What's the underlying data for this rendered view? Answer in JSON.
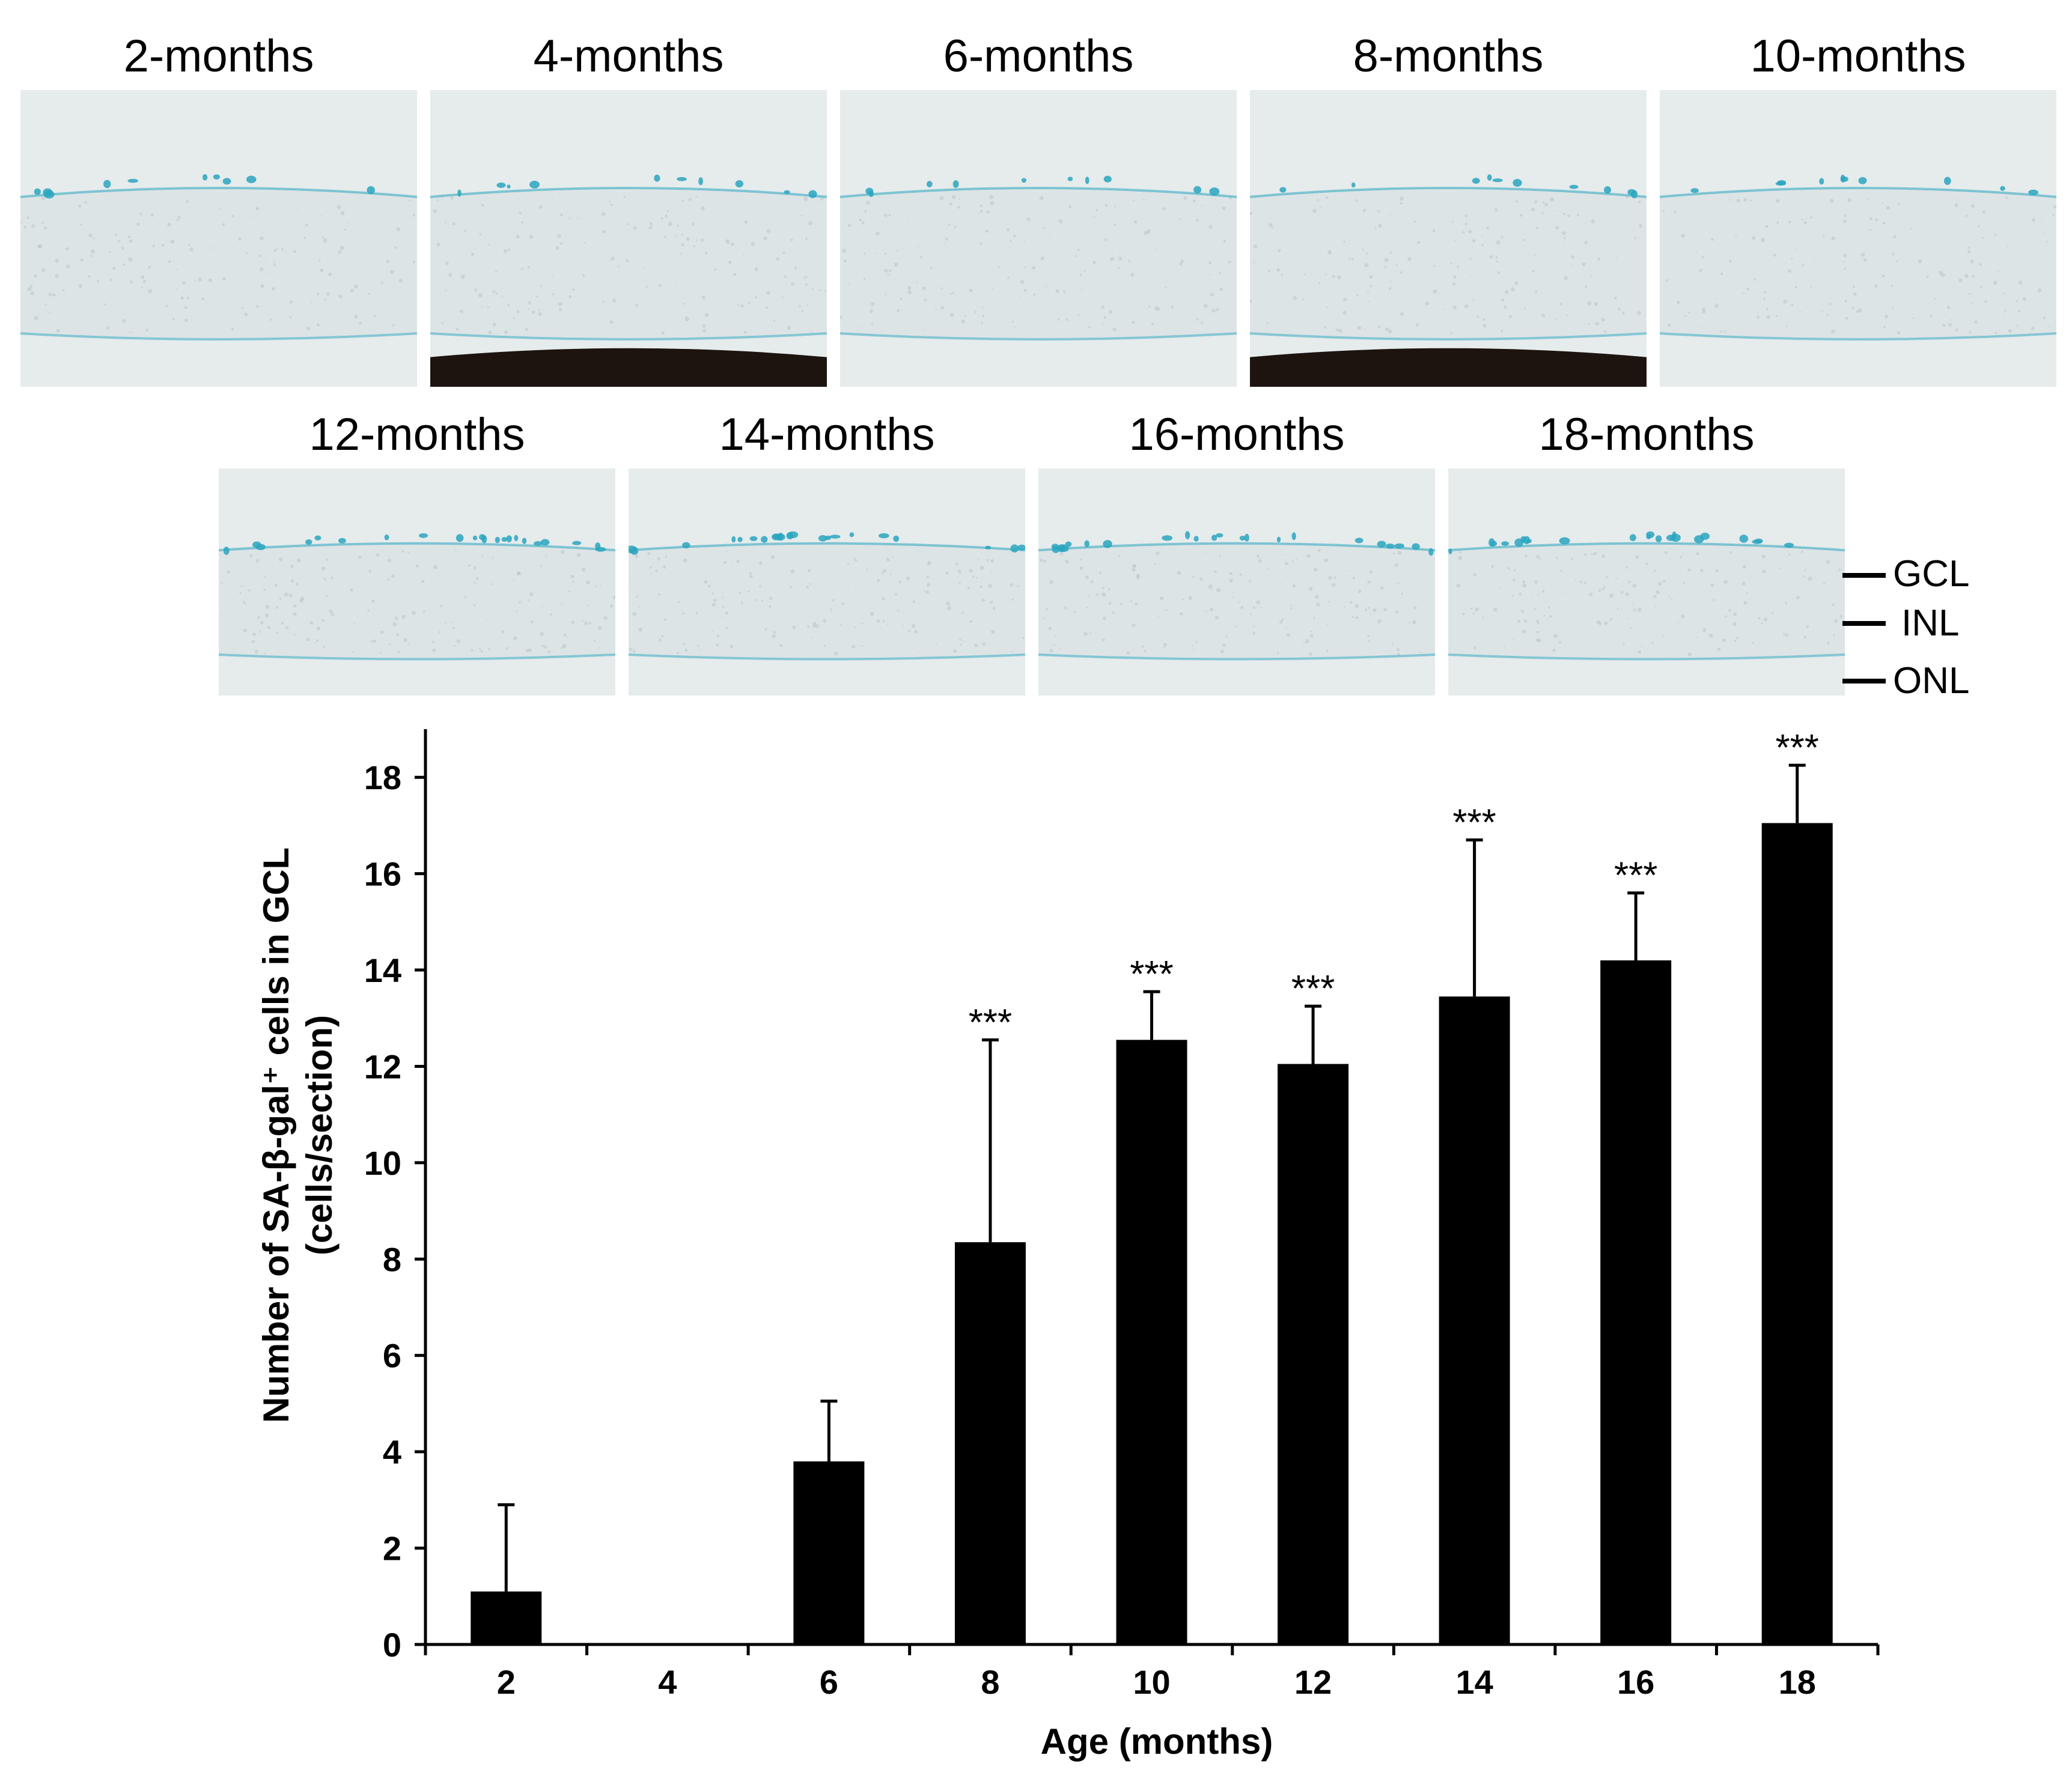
{
  "panels": {
    "row1": [
      {
        "label": "2-months",
        "kind": "a"
      },
      {
        "label": "4-months",
        "kind": "b"
      },
      {
        "label": "6-months",
        "kind": "a"
      },
      {
        "label": "8-months",
        "kind": "c"
      },
      {
        "label": "10-months",
        "kind": "a"
      }
    ],
    "row2": [
      {
        "label": "12-months"
      },
      {
        "label": "14-months"
      },
      {
        "label": "16-months"
      },
      {
        "label": "18-months"
      }
    ]
  },
  "layer_labels": {
    "gcl": "GCL",
    "inl": "INL",
    "onl": "ONL"
  },
  "colors": {
    "tissue": "#e9eef0",
    "stain": "#2aa6bf",
    "bar": "#000000"
  },
  "chart_data": {
    "type": "bar",
    "title": "",
    "xlabel": "Age (months)",
    "ylabel_line1": "Number of SA-β-gal⁺ cells in GCL",
    "ylabel_line2": "(cells/section)",
    "ylim": [
      0,
      19
    ],
    "yticks": [
      0,
      2,
      4,
      6,
      8,
      10,
      12,
      14,
      16,
      18
    ],
    "categories": [
      "2",
      "4",
      "6",
      "8",
      "10",
      "12",
      "14",
      "16",
      "18"
    ],
    "values": [
      1.1,
      0,
      3.8,
      8.35,
      12.55,
      12.05,
      13.45,
      14.2,
      17.05
    ],
    "errors": [
      1.8,
      0,
      1.25,
      4.2,
      1.0,
      1.2,
      3.25,
      1.4,
      1.2
    ],
    "significance": [
      "",
      "",
      "",
      "***",
      "***",
      "***",
      "***",
      "***",
      "***"
    ]
  }
}
